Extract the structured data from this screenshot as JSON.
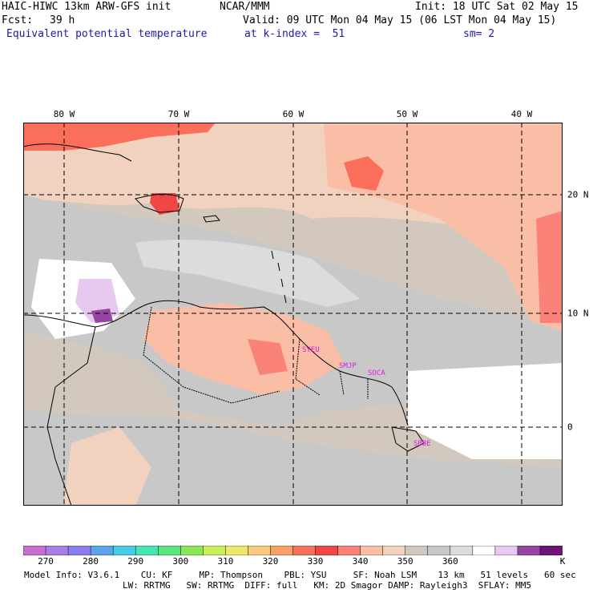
{
  "header": {
    "model": "HAIC-HIWC 13km ARW-GFS init",
    "center": "NCAR/MMM",
    "init": "Init: 18 UTC Sat 02 May 15",
    "fcst_label": "Fcst:",
    "fcst_value": "39 h",
    "valid": "Valid: 09 UTC Mon 04 May 15 (06 LST Mon 04 May 15)",
    "field": "Equivalent potential temperature",
    "level": "at k-index =  51",
    "smooth": "sm= 2"
  },
  "map": {
    "lon_labels": [
      "80 W",
      "70 W",
      "60 W",
      "50 W",
      "40 W"
    ],
    "lat_labels": [
      "20 N",
      "10 N",
      "0"
    ],
    "stations": [
      "SYEU",
      "SMJP",
      "SOCA",
      "SBBE"
    ]
  },
  "colorbar": {
    "colors": [
      "#c86ed2",
      "#a87ee6",
      "#8c7eee",
      "#5ca4ee",
      "#46cce6",
      "#46e6b2",
      "#5ae67e",
      "#8ce65a",
      "#c8ee5a",
      "#eee66e",
      "#fac87e",
      "#faa064",
      "#fa6e5a",
      "#f04646",
      "#fa8278",
      "#fabea6",
      "#f0d2be",
      "#d2c8be",
      "#c8c8c8",
      "#dcdcdc",
      "#ffffff",
      "#e6c8f0",
      "#9646a0",
      "#6e1478"
    ],
    "labels": [
      "270",
      "280",
      "290",
      "300",
      "310",
      "320",
      "330",
      "340",
      "350",
      "360"
    ],
    "unit": "K"
  },
  "footer": {
    "line1": "Model Info: V3.6.1    CU: KF     MP: Thompson    PBL: YSU     SF: Noah LSM    13 km   51 levels   60 sec",
    "line2": "LW: RRTMG   SW: RRTMG  DIFF: full   KM: 2D Smagor DAMP: Rayleigh3  SFLAY: MM5"
  }
}
